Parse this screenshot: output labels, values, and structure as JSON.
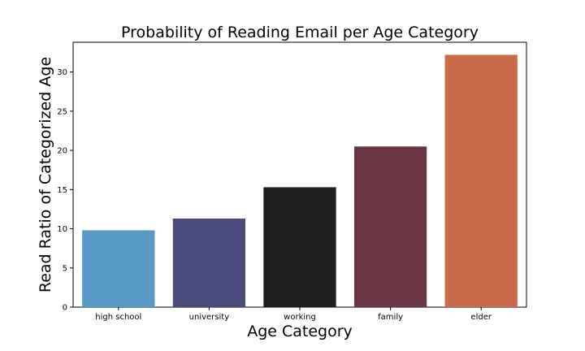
{
  "chart_data": {
    "type": "bar",
    "title": "Probability of Reading Email per Age Category",
    "xlabel": "Age Category",
    "ylabel": "Read Ratio of Categorized Age",
    "categories": [
      "high school",
      "university",
      "working",
      "family",
      "elder"
    ],
    "values": [
      9.8,
      11.3,
      15.3,
      20.5,
      32.2
    ],
    "colors": [
      "#5899c6",
      "#4a4a7c",
      "#1e1e1e",
      "#6c3543",
      "#cb6a48"
    ],
    "ylim": [
      0,
      33.8
    ],
    "yticks": [
      0,
      5,
      10,
      15,
      20,
      25,
      30
    ],
    "grid": false,
    "legend": "none"
  }
}
